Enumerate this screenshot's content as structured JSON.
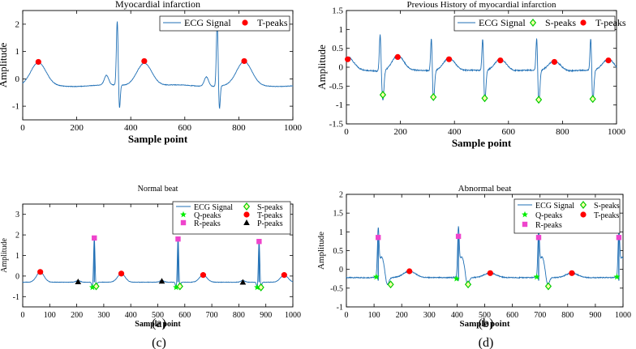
{
  "chart_data": [
    {
      "type": "line",
      "title": "Myocardial infarction",
      "xlabel": "Sample point",
      "ylabel": "Amplitude",
      "xlim": [
        0,
        1000
      ],
      "ylim": [
        -1.5,
        2.5
      ],
      "xticks": [
        "0",
        "200",
        "400",
        "600",
        "800",
        "1000"
      ],
      "yticks": [
        "-1",
        "0",
        "1",
        "2"
      ],
      "legend": [
        "ECG Signal",
        "T-peaks"
      ],
      "beats_r": [
        350,
        720
      ],
      "series": [
        {
          "name": "T-peaks",
          "marker": "circle",
          "color": "#ff0000",
          "x": [
            58,
            450,
            820
          ],
          "y": [
            0.62,
            0.65,
            0.65
          ]
        }
      ],
      "caption": "(a)"
    },
    {
      "type": "line",
      "title": "Previous History of myocardial infarction",
      "xlabel": "Sample point",
      "ylabel": "Amplitude",
      "xlim": [
        0,
        1000
      ],
      "ylim": [
        -1.5,
        1.5
      ],
      "xticks": [
        "0",
        "200",
        "400",
        "600",
        "800",
        "1000"
      ],
      "yticks": [
        "-1.5",
        "-1",
        "-0.5",
        "0",
        "0.5",
        "1",
        "1.5"
      ],
      "legend": [
        "ECG Signal",
        "S-peaks",
        "T-peaks"
      ],
      "beats_r": [
        125,
        315,
        505,
        705,
        905
      ],
      "series": [
        {
          "name": "S-peaks",
          "marker": "diamond",
          "color": "#00cc00",
          "x": [
            135,
            322,
            512,
            712,
            912
          ],
          "y": [
            -0.73,
            -0.79,
            -0.82,
            -0.86,
            -0.84
          ]
        },
        {
          "name": "T-peaks",
          "marker": "circle",
          "color": "#ff0000",
          "x": [
            5,
            190,
            380,
            570,
            770,
            970
          ],
          "y": [
            0.21,
            0.27,
            0.21,
            0.18,
            0.14,
            0.18
          ]
        }
      ],
      "caption": "(b)"
    },
    {
      "type": "line",
      "title": "Normal beat",
      "xlabel": "Sample point",
      "ylabel": "Amplitude",
      "xlim": [
        0,
        1000
      ],
      "ylim": [
        -1.5,
        3.5
      ],
      "xticks": [
        "0",
        "100",
        "200",
        "300",
        "400",
        "500",
        "600",
        "700",
        "800",
        "900",
        "1000"
      ],
      "yticks": [
        "-1",
        "0",
        "1",
        "2",
        "3"
      ],
      "legend": [
        "ECG Signal",
        "S-peaks",
        "Q-peaks",
        "T-peaks",
        "R-peaks",
        "P-peaks"
      ],
      "beats_r": [
        265,
        575,
        875
      ],
      "series": [
        {
          "name": "Q-peaks",
          "marker": "star",
          "color": "#00ee00",
          "x": [
            258,
            568,
            868
          ],
          "y": [
            -0.55,
            -0.55,
            -0.55
          ]
        },
        {
          "name": "S-peaks",
          "marker": "diamond",
          "color": "#00cc00",
          "x": [
            272,
            582,
            882
          ],
          "y": [
            -0.5,
            -0.5,
            -0.55
          ]
        },
        {
          "name": "R-peaks",
          "marker": "square",
          "color": "#ee44cc",
          "x": [
            265,
            575,
            875
          ],
          "y": [
            1.85,
            1.8,
            1.68
          ]
        },
        {
          "name": "T-peaks",
          "marker": "circle",
          "color": "#ff0000",
          "x": [
            65,
            365,
            668,
            968
          ],
          "y": [
            0.2,
            0.12,
            0.05,
            0.05
          ]
        },
        {
          "name": "P-peaks",
          "marker": "triangle",
          "color": "#000000",
          "x": [
            205,
            515,
            815
          ],
          "y": [
            -0.28,
            -0.25,
            -0.3
          ]
        }
      ],
      "caption": "(c)"
    },
    {
      "type": "line",
      "title": "Abnormal beat",
      "xlabel": "Sample point",
      "ylabel": "Amplitude",
      "xlim": [
        0,
        1000
      ],
      "ylim": [
        -1,
        2
      ],
      "xticks": [
        "0",
        "100",
        "200",
        "300",
        "400",
        "500",
        "600",
        "700",
        "800",
        "900",
        "1000"
      ],
      "yticks": [
        "-1",
        "-0.5",
        "0",
        "0.5",
        "1",
        "1.5",
        "2"
      ],
      "legend": [
        "ECG Signal",
        "S-peaks",
        "Q-peaks",
        "T-peaks",
        "R-peaks"
      ],
      "beats_r": [
        115,
        405,
        695,
        985
      ],
      "series": [
        {
          "name": "Q-peaks",
          "marker": "star",
          "color": "#00ee00",
          "x": [
            108,
            398,
            688,
            978
          ],
          "y": [
            -0.2,
            -0.25,
            -0.2,
            -0.2
          ]
        },
        {
          "name": "S-peaks",
          "marker": "diamond",
          "color": "#00cc00",
          "x": [
            160,
            440,
            730
          ],
          "y": [
            -0.4,
            -0.4,
            -0.45
          ]
        },
        {
          "name": "R-peaks",
          "marker": "square",
          "color": "#ee44cc",
          "x": [
            115,
            405,
            695,
            985
          ],
          "y": [
            0.85,
            0.88,
            0.85,
            0.85
          ]
        },
        {
          "name": "T-peaks",
          "marker": "circle",
          "color": "#ff0000",
          "x": [
            228,
            520,
            815
          ],
          "y": [
            -0.05,
            -0.1,
            -0.1
          ]
        }
      ],
      "caption": "(d)"
    }
  ],
  "colors": {
    "ecg": "#1f6fb5",
    "axis": "#000000"
  }
}
